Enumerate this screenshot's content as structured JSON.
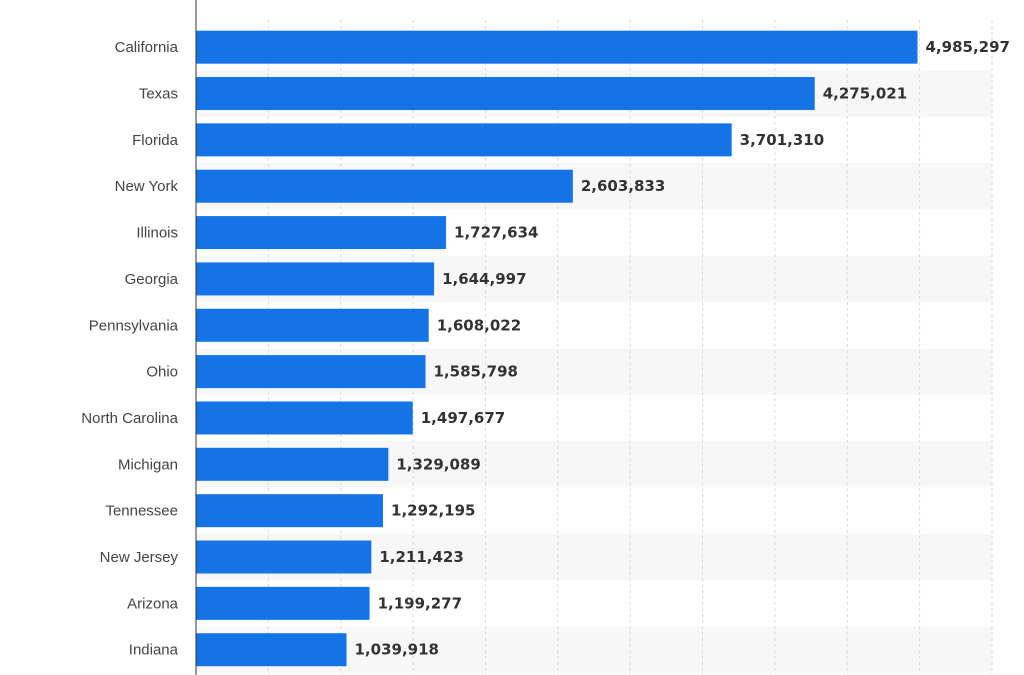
{
  "chart_data": {
    "type": "bar",
    "orientation": "horizontal",
    "title": "",
    "xlabel": "",
    "ylabel": "",
    "categories": [
      "California",
      "Texas",
      "Florida",
      "New York",
      "Illinois",
      "Georgia",
      "Pennsylvania",
      "Ohio",
      "North Carolina",
      "Michigan",
      "Tennessee",
      "New Jersey",
      "Arizona",
      "Indiana"
    ],
    "values": [
      4985297,
      4275021,
      3701310,
      2603833,
      1727634,
      1644997,
      1608022,
      1585798,
      1497677,
      1329089,
      1292195,
      1211423,
      1199277,
      1039918
    ],
    "value_labels": [
      "4,985,297",
      "4,275,021",
      "3,701,310",
      "2,603,833",
      "1,727,634",
      "1,644,997",
      "1,608,022",
      "1,585,798",
      "1,497,677",
      "1,329,089",
      "1,292,195",
      "1,211,423",
      "1,199,277",
      "1,039,918"
    ],
    "xlim": [
      0,
      5500000
    ],
    "x_grid_step": 500000,
    "grid": true,
    "gridline_style": "dashed vertical",
    "band_striping": true,
    "bar_color": "#1473e6",
    "band_color": "#f7f7f7",
    "grid_color": "#d9d9d9",
    "axis_color": "#333333"
  }
}
